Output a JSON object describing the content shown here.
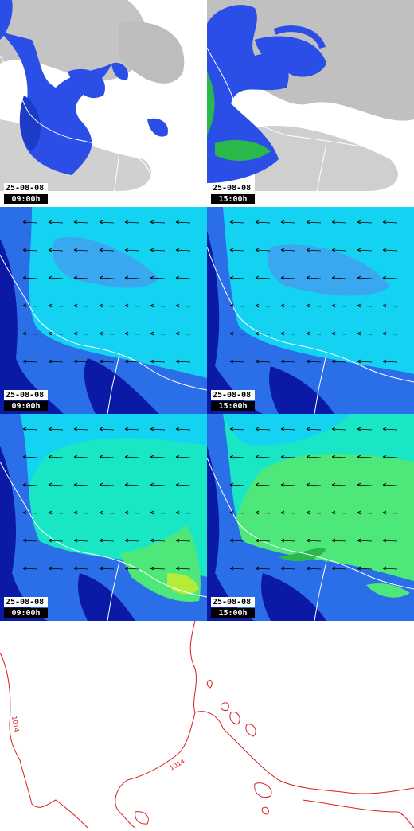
{
  "panels": [
    {
      "row": "cloud-precip",
      "date": "25-08-08",
      "time": "09:00h"
    },
    {
      "row": "cloud-precip",
      "date": "25-08-08",
      "time": "15:00h"
    },
    {
      "row": "wind-upper",
      "date": "25-08-08",
      "time": "09:00h"
    },
    {
      "row": "wind-upper",
      "date": "25-08-08",
      "time": "15:00h"
    },
    {
      "row": "wind-lower",
      "date": "25-08-08",
      "time": "09:00h"
    },
    {
      "row": "wind-lower",
      "date": "25-08-08",
      "time": "15:00h"
    }
  ],
  "pressure": {
    "isobar_labels": [
      "1014",
      "1014"
    ]
  },
  "colors": {
    "cloud": "#b8b8b8",
    "precip": "#2a4ee6",
    "precip_heavy": "#2ab84a",
    "wind_dark": "#0a1aa6",
    "wind_mid": "#2a6ee8",
    "wind_light": "#14d2f2",
    "wind_teal": "#18e6c4",
    "wind_green": "#4ee87a",
    "isobar": "#d81e1e"
  }
}
